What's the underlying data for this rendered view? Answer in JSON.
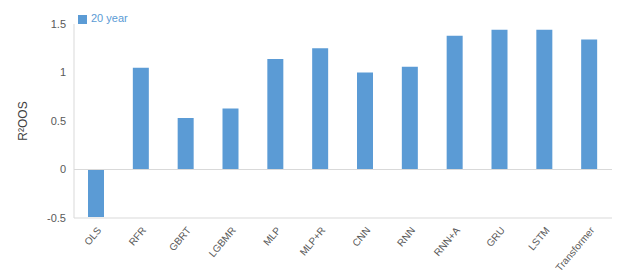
{
  "chart_data": {
    "type": "bar",
    "y_label": "R²OOS",
    "categories": [
      "OLS",
      "RFR",
      "GBRT",
      "LGBMR",
      "MLP",
      "MLP+R",
      "CNN",
      "RNN",
      "RNN+A",
      "GRU",
      "LSTM",
      "Transformer"
    ],
    "series": [
      {
        "name": "20 year",
        "color": "#5b9bd5",
        "values": [
          -0.49,
          1.05,
          0.53,
          0.63,
          1.14,
          1.25,
          1.0,
          1.06,
          1.38,
          1.44,
          1.44,
          1.34
        ]
      }
    ],
    "ylim": [
      -0.5,
      1.5
    ],
    "yticks": [
      -0.5,
      0,
      0.5,
      1,
      1.5
    ],
    "grid": false,
    "legend": "upper left"
  }
}
